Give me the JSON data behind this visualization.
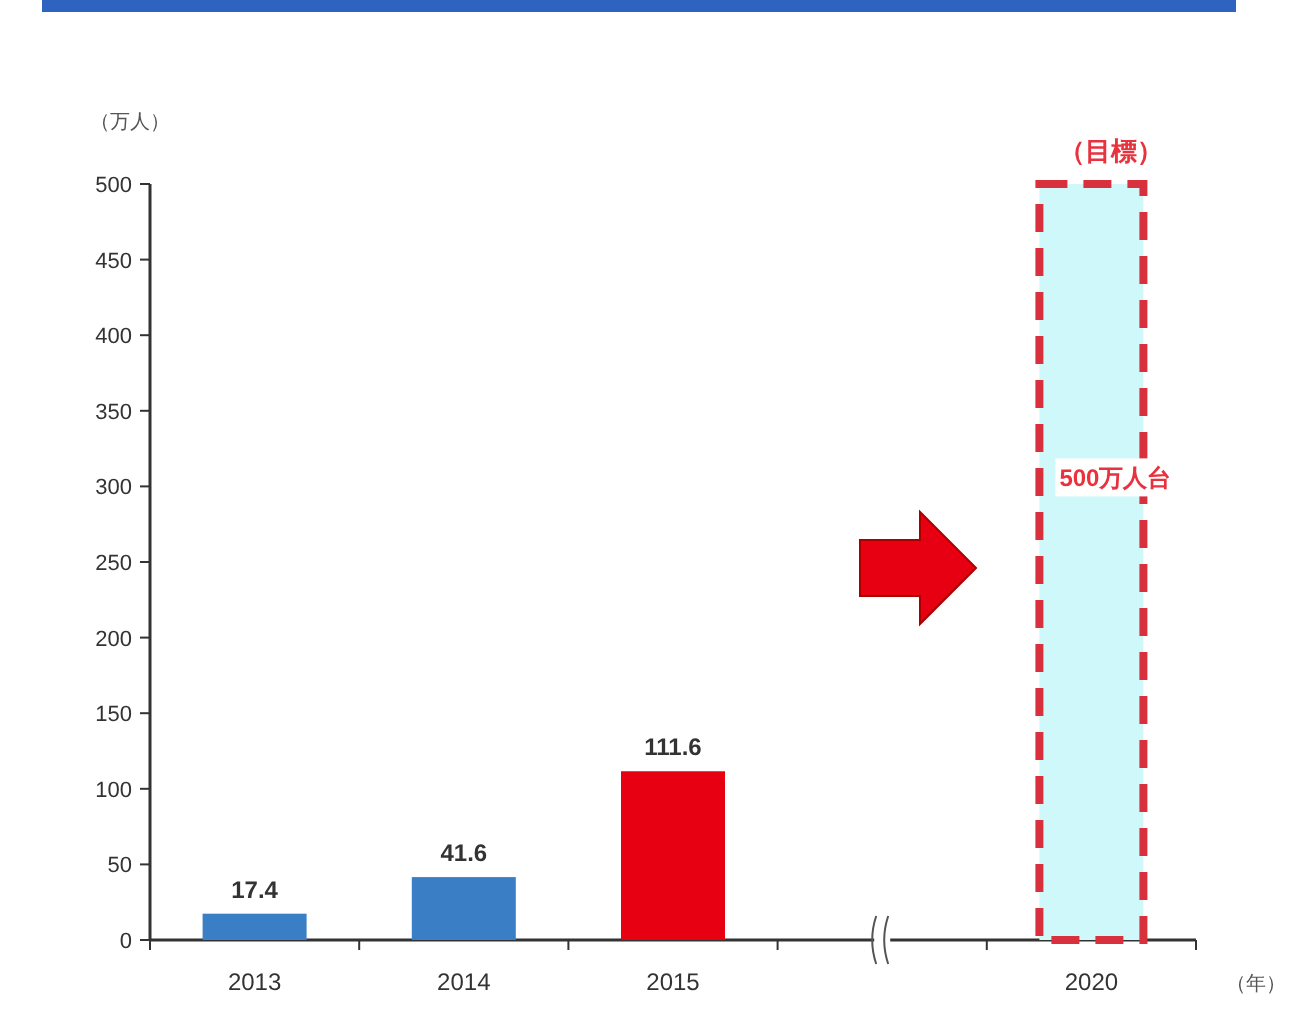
{
  "chart_data": {
    "type": "bar",
    "ylabel": "（万人）",
    "xlabel": "（年）",
    "categories": [
      "2013",
      "2014",
      "2015",
      null,
      "2020"
    ],
    "ylim": [
      0,
      500
    ],
    "yticks": [
      0,
      50,
      100,
      150,
      200,
      250,
      300,
      350,
      400,
      450,
      500
    ],
    "series": [
      {
        "colors": [
          "#3a7ec6",
          "#3a7ec6",
          "#e60012",
          null,
          null
        ],
        "values": [
          17.4,
          41.6,
          111.6,
          null,
          null
        ],
        "value_labels": [
          "17.4",
          "41.6",
          "111.6",
          null,
          null
        ]
      },
      {
        "color": "#cff8fa",
        "line_style": "dashed",
        "values": [
          null,
          null,
          null,
          null,
          500
        ],
        "value_labels": [
          null,
          null,
          null,
          null,
          "500万人台"
        ]
      }
    ],
    "annotations": [
      {
        "text": "（目標）",
        "x": "2020",
        "y": 500
      }
    ]
  }
}
